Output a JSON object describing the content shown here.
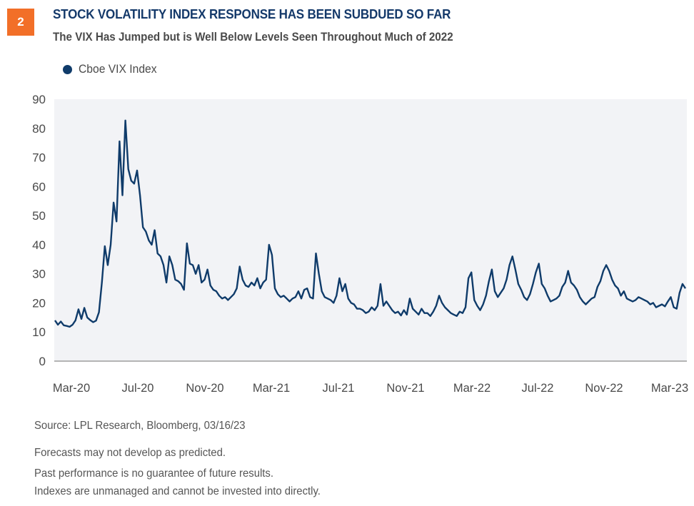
{
  "badge": "2",
  "header": {
    "title": "STOCK VOLATILITY INDEX RESPONSE HAS BEEN SUBDUED SO FAR",
    "subtitle": "The VIX Has Jumped but is Well Below Levels Seen Throughout Much of 2022"
  },
  "colors": {
    "badge": "#f26f28",
    "title": "#14396a",
    "series": "#0f3b6a",
    "plot_background": "#f2f3f6",
    "axis": "#8a8a8a",
    "text": "#4a4a4a"
  },
  "chart_data": {
    "type": "line",
    "title": "STOCK VOLATILITY INDEX RESPONSE HAS BEEN SUBDUED SO FAR",
    "subtitle": "The VIX Has Jumped but is Well Below Levels Seen Throughout Much of 2022",
    "xlabel": "",
    "ylabel": "",
    "ylim": [
      0,
      90
    ],
    "yticks": [
      0,
      10,
      20,
      30,
      40,
      50,
      60,
      70,
      80,
      90
    ],
    "x_tick_labels": [
      "Mar-20",
      "Jul-20",
      "Nov-20",
      "Mar-21",
      "Jul-21",
      "Nov-21",
      "Mar-22",
      "Jul-22",
      "Nov-22",
      "Mar-23"
    ],
    "x_range": [
      "2020-01",
      "2023-03-16"
    ],
    "frequency": "weekly (approx.)",
    "grid": false,
    "legend": "top-left",
    "series": [
      {
        "name": "Cboe VIX Index",
        "values": [
          14.0,
          12.5,
          13.6,
          12.3,
          12.1,
          11.8,
          12.5,
          14.0,
          17.8,
          14.5,
          18.3,
          15.0,
          14.1,
          13.4,
          13.9,
          16.8,
          27.0,
          39.5,
          33.0,
          40.0,
          54.5,
          48.0,
          75.5,
          57.0,
          82.7,
          66.0,
          62.0,
          61.0,
          65.5,
          57.0,
          46.0,
          44.5,
          41.5,
          40.0,
          45.0,
          37.0,
          36.0,
          33.0,
          27.0,
          36.0,
          33.0,
          28.0,
          27.5,
          26.5,
          24.5,
          40.5,
          33.5,
          33.0,
          30.0,
          33.0,
          27.0,
          28.0,
          31.5,
          26.0,
          24.5,
          24.0,
          22.5,
          21.5,
          22.0,
          21.0,
          22.0,
          23.0,
          25.0,
          32.5,
          28.0,
          26.0,
          25.5,
          27.0,
          26.0,
          28.5,
          25.0,
          27.0,
          28.0,
          40.0,
          36.5,
          25.0,
          23.0,
          22.0,
          22.5,
          21.5,
          20.5,
          21.5,
          22.0,
          24.0,
          21.5,
          24.5,
          25.0,
          22.0,
          21.5,
          37.0,
          30.0,
          24.0,
          22.0,
          21.5,
          21.0,
          20.0,
          22.5,
          28.5,
          24.0,
          26.5,
          21.5,
          20.0,
          19.5,
          18.0,
          18.0,
          17.5,
          16.5,
          17.0,
          18.5,
          17.5,
          19.0,
          26.5,
          19.0,
          20.5,
          19.0,
          17.5,
          16.5,
          17.0,
          15.7,
          17.5,
          16.0,
          21.5,
          18.0,
          17.0,
          16.0,
          18.0,
          16.5,
          16.5,
          15.5,
          17.0,
          19.0,
          22.5,
          20.0,
          18.5,
          17.5,
          16.5,
          16.0,
          15.5,
          17.0,
          16.5,
          18.5,
          28.5,
          30.5,
          21.0,
          19.0,
          17.5,
          19.5,
          22.5,
          27.5,
          31.5,
          24.0,
          22.0,
          23.5,
          25.0,
          28.0,
          33.0,
          36.0,
          31.5,
          26.5,
          24.5,
          22.0,
          21.0,
          23.0,
          26.5,
          30.5,
          33.5,
          26.5,
          25.0,
          22.5,
          20.5,
          21.0,
          21.5,
          22.5,
          25.5,
          27.0,
          31.0,
          27.0,
          26.0,
          24.5,
          22.0,
          20.5,
          19.5,
          20.5,
          21.5,
          22.0,
          25.5,
          27.5,
          31.0,
          33.0,
          31.0,
          28.0,
          26.0,
          25.0,
          22.5,
          24.0,
          21.5,
          21.0,
          20.5,
          21.0,
          22.0,
          21.5,
          21.0,
          20.5,
          19.5,
          20.0,
          18.5,
          19.0,
          19.5,
          18.8,
          20.5,
          22.0,
          18.5,
          18.0,
          23.5,
          26.5,
          25.0
        ]
      }
    ]
  },
  "legend": {
    "items": [
      {
        "label": "Cboe VIX Index",
        "color": "#0f3b6a"
      }
    ]
  },
  "footer": {
    "source": "Source: LPL Research,  Bloomberg,  03/16/23",
    "disclaimers": [
      "Forecasts may not develop as predicted.",
      "Past performance is no guarantee of future results.",
      "Indexes are unmanaged and cannot be invested into directly."
    ]
  }
}
